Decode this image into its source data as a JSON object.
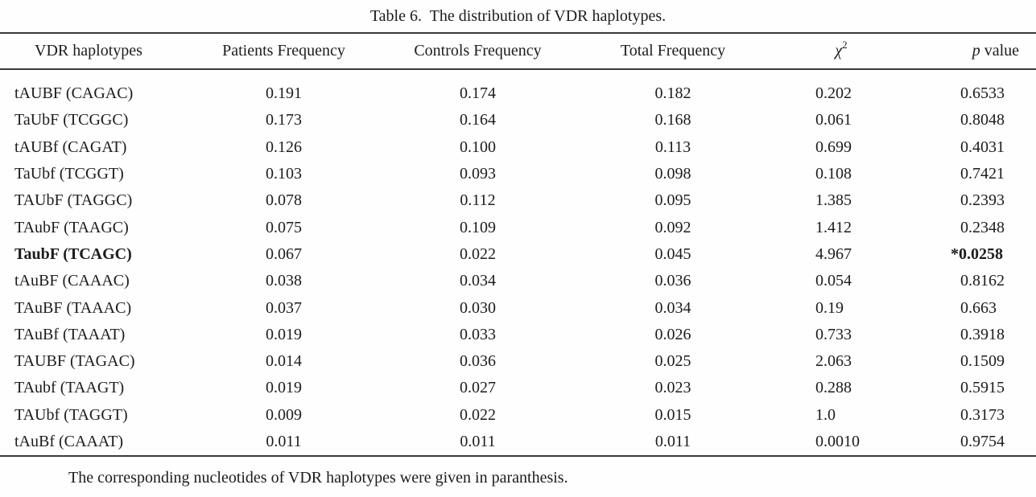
{
  "table": {
    "title": "Table 6.  The distribution of VDR haplotypes.",
    "columns": {
      "haplotypes": "VDR haplotypes",
      "patients": "Patients Frequency",
      "controls": "Controls Frequency",
      "total": "Total Frequency",
      "chi_base": "χ",
      "chi_exp": "2",
      "p_symbol": "p",
      "p_rest": "value"
    },
    "rows": [
      {
        "haplotype": "tAUBF (CAGAC)",
        "patients": "0.191",
        "controls": "0.174",
        "total": "0.182",
        "chi2": "0.202",
        "p": "0.6533",
        "emphasis": false,
        "p_starred": false
      },
      {
        "haplotype": "TaUbF (TCGGC)",
        "patients": "0.173",
        "controls": "0.164",
        "total": "0.168",
        "chi2": "0.061",
        "p": "0.8048",
        "emphasis": false,
        "p_starred": false
      },
      {
        "haplotype": "tAUBf (CAGAT)",
        "patients": "0.126",
        "controls": "0.100",
        "total": "0.113",
        "chi2": "0.699",
        "p": "0.4031",
        "emphasis": false,
        "p_starred": false
      },
      {
        "haplotype": "TaUbf (TCGGT)",
        "patients": "0.103",
        "controls": "0.093",
        "total": "0.098",
        "chi2": "0.108",
        "p": "0.7421",
        "emphasis": false,
        "p_starred": false
      },
      {
        "haplotype": "TAUbF (TAGGC)",
        "patients": "0.078",
        "controls": "0.112",
        "total": "0.095",
        "chi2": "1.385",
        "p": "0.2393",
        "emphasis": false,
        "p_starred": false
      },
      {
        "haplotype": "TAubF (TAAGC)",
        "patients": "0.075",
        "controls": "0.109",
        "total": "0.092",
        "chi2": "1.412",
        "p": "0.2348",
        "emphasis": false,
        "p_starred": false
      },
      {
        "haplotype": "TaubF (TCAGC)",
        "patients": "0.067",
        "controls": "0.022",
        "total": "0.045",
        "chi2": "4.967",
        "p": "0.0258",
        "emphasis": true,
        "p_starred": true,
        "star": "*"
      },
      {
        "haplotype": "tAuBF (CAAAC)",
        "patients": "0.038",
        "controls": "0.034",
        "total": "0.036",
        "chi2": "0.054",
        "p": "0.8162",
        "emphasis": false,
        "p_starred": false
      },
      {
        "haplotype": "TAuBF (TAAAC)",
        "patients": "0.037",
        "controls": "0.030",
        "total": "0.034",
        "chi2": "0.19",
        "p": "0.663",
        "emphasis": false,
        "p_starred": false
      },
      {
        "haplotype": "TAuBf (TAAAT)",
        "patients": "0.019",
        "controls": "0.033",
        "total": "0.026",
        "chi2": "0.733",
        "p": "0.3918",
        "emphasis": false,
        "p_starred": false
      },
      {
        "haplotype": "TAUBF (TAGAC)",
        "patients": "0.014",
        "controls": "0.036",
        "total": "0.025",
        "chi2": "2.063",
        "p": "0.1509",
        "emphasis": false,
        "p_starred": false
      },
      {
        "haplotype": "TAubf (TAAGT)",
        "patients": "0.019",
        "controls": "0.027",
        "total": "0.023",
        "chi2": "0.288",
        "p": "0.5915",
        "emphasis": false,
        "p_starred": false
      },
      {
        "haplotype": "TAUbf (TAGGT)",
        "patients": "0.009",
        "controls": "0.022",
        "total": "0.015",
        "chi2": "1.0",
        "p": "0.3173",
        "emphasis": false,
        "p_starred": false
      },
      {
        "haplotype": "tAuBf (CAAAT)",
        "patients": "0.011",
        "controls": "0.011",
        "total": "0.011",
        "chi2": "0.0010",
        "p": "0.9754",
        "emphasis": false,
        "p_starred": false
      }
    ],
    "footnote": "The corresponding nucleotides of VDR haplotypes were given in paranthesis."
  }
}
